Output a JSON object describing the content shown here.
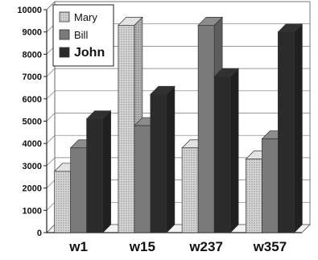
{
  "chart_data": {
    "type": "bar",
    "style": "3d-clustered-column",
    "categories": [
      "w1",
      "w15",
      "w237",
      "w357"
    ],
    "series": [
      {
        "name": "Mary",
        "values": [
          2750,
          9300,
          3800,
          3300
        ],
        "color": "#c8c8c8",
        "pattern": "dotted"
      },
      {
        "name": "Bill",
        "values": [
          3800,
          4800,
          9300,
          4200
        ],
        "color": "#7a7a7a"
      },
      {
        "name": "John",
        "values": [
          5100,
          6200,
          7000,
          9000
        ],
        "color": "#2b2b2b"
      }
    ],
    "yticks": [
      0,
      1000,
      2000,
      3000,
      4000,
      5000,
      6000,
      7000,
      8000,
      9000,
      10000
    ],
    "ylim": [
      0,
      10000
    ],
    "grid": true,
    "legend": "top-left"
  }
}
